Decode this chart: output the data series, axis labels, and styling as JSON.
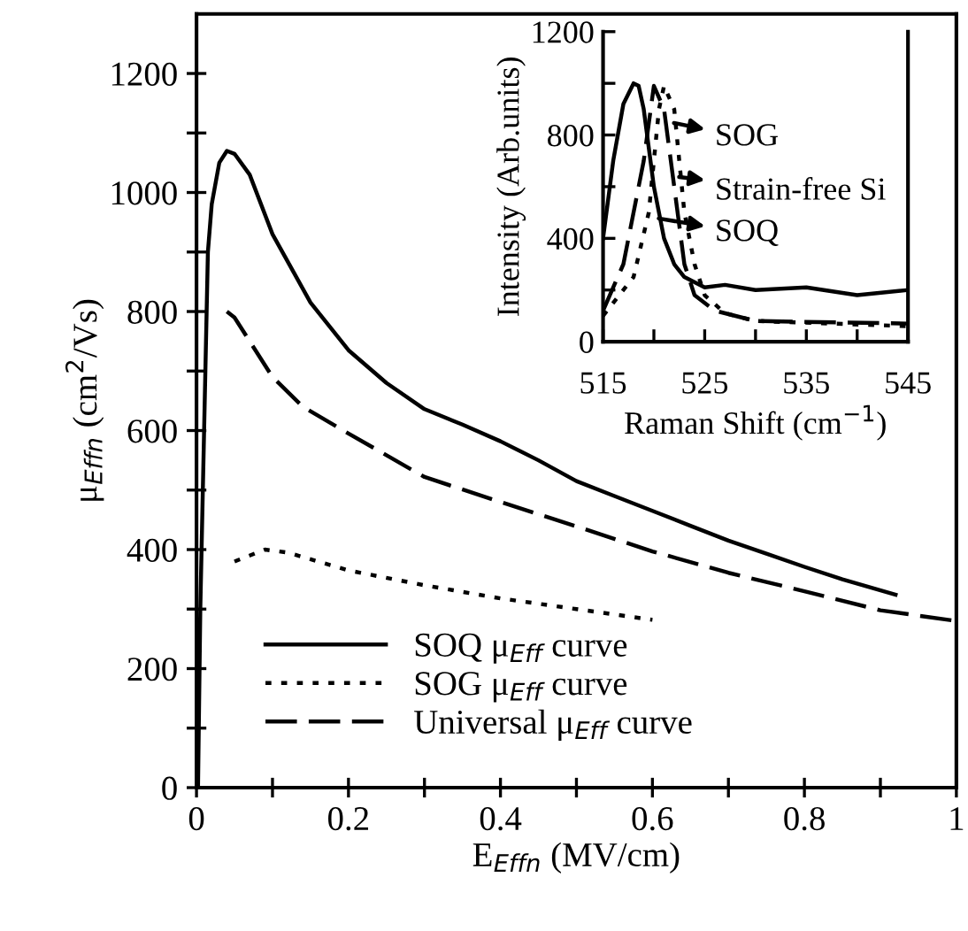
{
  "chart_data": [
    {
      "type": "line",
      "xlabel": "E$_{Effn}$ (MV/cm)",
      "ylabel": "μ$_{Effn}$ (cm$^{2}$/Vs)",
      "xlim": [
        0,
        1
      ],
      "ylim": [
        0,
        1300
      ],
      "xticks": [
        0,
        {
          "value": 0.1,
          "label": null
        },
        0.2,
        {
          "value": 0.3,
          "label": null
        },
        0.4,
        {
          "value": 0.5,
          "label": null
        },
        0.6,
        {
          "value": 0.7,
          "label": null
        },
        0.8,
        {
          "value": 0.9,
          "label": null
        },
        1
      ],
      "yticks": [
        0,
        {
          "value": 100,
          "label": null
        },
        200,
        {
          "value": 300,
          "label": null
        },
        400,
        {
          "value": 500,
          "label": null
        },
        600,
        {
          "value": 700,
          "label": null
        },
        800,
        {
          "value": 900,
          "label": null
        },
        1000,
        {
          "value": 1100,
          "label": null
        },
        1200
      ],
      "grid": false,
      "legend": "bottom left",
      "marker": "none",
      "series": [
        {
          "name": "SOQ μ$_{Eff}$ curve",
          "color": "#000000",
          "line_style": "solid",
          "x": [
            0.002,
            0.005,
            0.01,
            0.015,
            0.02,
            0.03,
            0.04,
            0.05,
            0.07,
            0.1,
            0.15,
            0.2,
            0.25,
            0.3,
            0.35,
            0.4,
            0.45,
            0.5,
            0.55,
            0.6,
            0.65,
            0.7,
            0.75,
            0.8,
            0.85,
            0.92
          ],
          "values": [
            0,
            300,
            600,
            900,
            980,
            1050,
            1070,
            1065,
            1030,
            930,
            815,
            735,
            680,
            636,
            610,
            582,
            550,
            515,
            490,
            465,
            440,
            415,
            393,
            371,
            350,
            324
          ]
        },
        {
          "name": "SOG μ$_{Eff}$ curve",
          "color": "#000000",
          "line_style": "dotted",
          "x": [
            0.05,
            0.09,
            0.12,
            0.2,
            0.3,
            0.4,
            0.5,
            0.6
          ],
          "values": [
            380,
            400,
            395,
            365,
            340,
            318,
            300,
            282
          ]
        },
        {
          "name": "Universal μ$_{Eff}$ curve",
          "color": "#000000",
          "line_style": "dashed",
          "x": [
            0.04,
            0.05,
            0.1,
            0.14,
            0.2,
            0.3,
            0.4,
            0.5,
            0.6,
            0.7,
            0.8,
            0.9,
            1.0
          ],
          "values": [
            800,
            790,
            690,
            640,
            595,
            522,
            480,
            439,
            397,
            361,
            330,
            298,
            280
          ]
        }
      ]
    },
    {
      "type": "line",
      "xlabel": "Raman Shift (cm$^{−1}$)",
      "ylabel": "Intensity (Arb.units)",
      "xlim": [
        515,
        545
      ],
      "ylim": [
        0,
        1200
      ],
      "xticks": [
        515,
        {
          "value": 520,
          "label": null
        },
        525,
        {
          "value": 530,
          "label": null
        },
        535,
        {
          "value": 540,
          "label": null
        },
        545
      ],
      "yticks": [
        0,
        {
          "value": 200,
          "label": null
        },
        400,
        {
          "value": 600,
          "label": null
        },
        800,
        {
          "value": 1000,
          "label": null
        },
        1200
      ],
      "grid": false,
      "legend": false,
      "marker": "none",
      "annotations": [
        {
          "text": "SOG",
          "x": 521.5,
          "y": 850
        },
        {
          "text": "Strain-free Si",
          "x": 522,
          "y": 640
        },
        {
          "text": "SOQ",
          "x": 520,
          "y": 480
        }
      ],
      "series": [
        {
          "color": "#000000",
          "line_style": "solid",
          "x": [
            515,
            516,
            517,
            518,
            518.5,
            519,
            520,
            521,
            522,
            523,
            525,
            527,
            530,
            535,
            540,
            545
          ],
          "values": [
            400,
            700,
            920,
            1000,
            990,
            900,
            600,
            400,
            300,
            250,
            210,
            220,
            200,
            210,
            180,
            200
          ]
        },
        {
          "color": "#000000",
          "line_style": "dashed",
          "x": [
            515,
            517,
            519,
            520,
            521,
            522,
            523,
            524,
            526,
            530,
            545
          ],
          "values": [
            120,
            300,
            700,
            990,
            900,
            600,
            300,
            180,
            120,
            80,
            70
          ]
        },
        {
          "color": "#000000",
          "line_style": "dotted",
          "x": [
            515,
            518,
            519.5,
            520.5,
            521,
            522,
            523,
            524,
            525,
            527,
            530,
            545
          ],
          "values": [
            100,
            250,
            500,
            900,
            990,
            900,
            500,
            300,
            180,
            110,
            80,
            60
          ]
        }
      ]
    }
  ]
}
